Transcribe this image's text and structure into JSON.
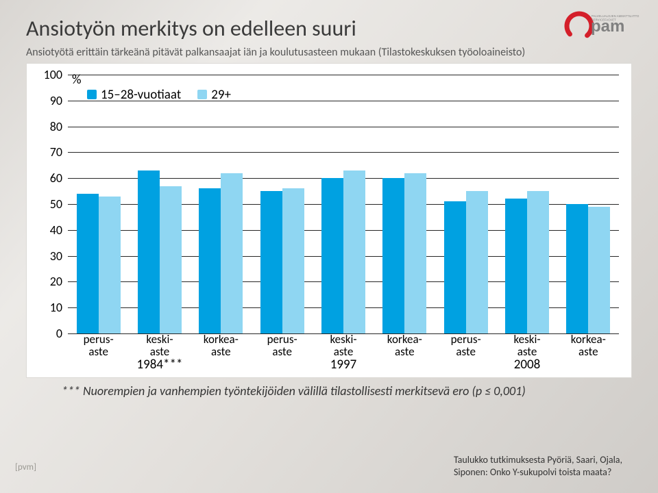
{
  "title": "Ansiotyön merkitys on edelleen suuri",
  "subtitle": "Ansiotyötä erittäin tärkeänä pitävät palkansaajat iän ja koulutusasteen mukaan (Tilastokeskuksen työoloaineisto)",
  "logo": {
    "brand": "pam",
    "tagline": "PALVELUALOJEN AMMATTILIITTO",
    "tagline2": "SERVICEFACKET",
    "accent": "#d41f2a",
    "text": "#808080"
  },
  "chart": {
    "type": "grouped-bar",
    "y_unit": "%",
    "ylim": [
      0,
      100
    ],
    "ytick_step": 10,
    "background": "#ffffff",
    "gridline_color": "#000000",
    "axis_fontsize": 18,
    "legend": [
      {
        "label": "15–28-vuotiaat",
        "color": "#00a1e1"
      },
      {
        "label": "29+",
        "color": "#8fd6f2"
      }
    ],
    "bar_width_ratio": 0.36,
    "categories": [
      "perus-\naste",
      "keski-\naste",
      "korkea-\naste",
      "perus-\naste",
      "keski-\naste",
      "korkea-\naste",
      "perus-\naste",
      "keski-\naste",
      "korkea-\naste"
    ],
    "year_groups": [
      {
        "label": "1984***",
        "span": [
          0,
          2
        ]
      },
      {
        "label": "1997",
        "span": [
          3,
          5
        ]
      },
      {
        "label": "2008",
        "span": [
          6,
          8
        ]
      }
    ],
    "series": {
      "young": [
        54,
        63,
        56,
        55,
        60,
        60,
        51,
        52,
        50
      ],
      "old": [
        53,
        57,
        62,
        56,
        63,
        62,
        55,
        55,
        49
      ]
    }
  },
  "footnote": "***   Nuorempien ja vanhempien työntekijöiden välillä tilastollisesti merkitsevä ero (p ≤ 0,001)",
  "source1": "Taulukko tutkimuksesta Pyöriä, Saari, Ojala,",
  "source2": "Siponen: Onko Y-sukupolvi toista maata?",
  "pvm": "[pvm]"
}
